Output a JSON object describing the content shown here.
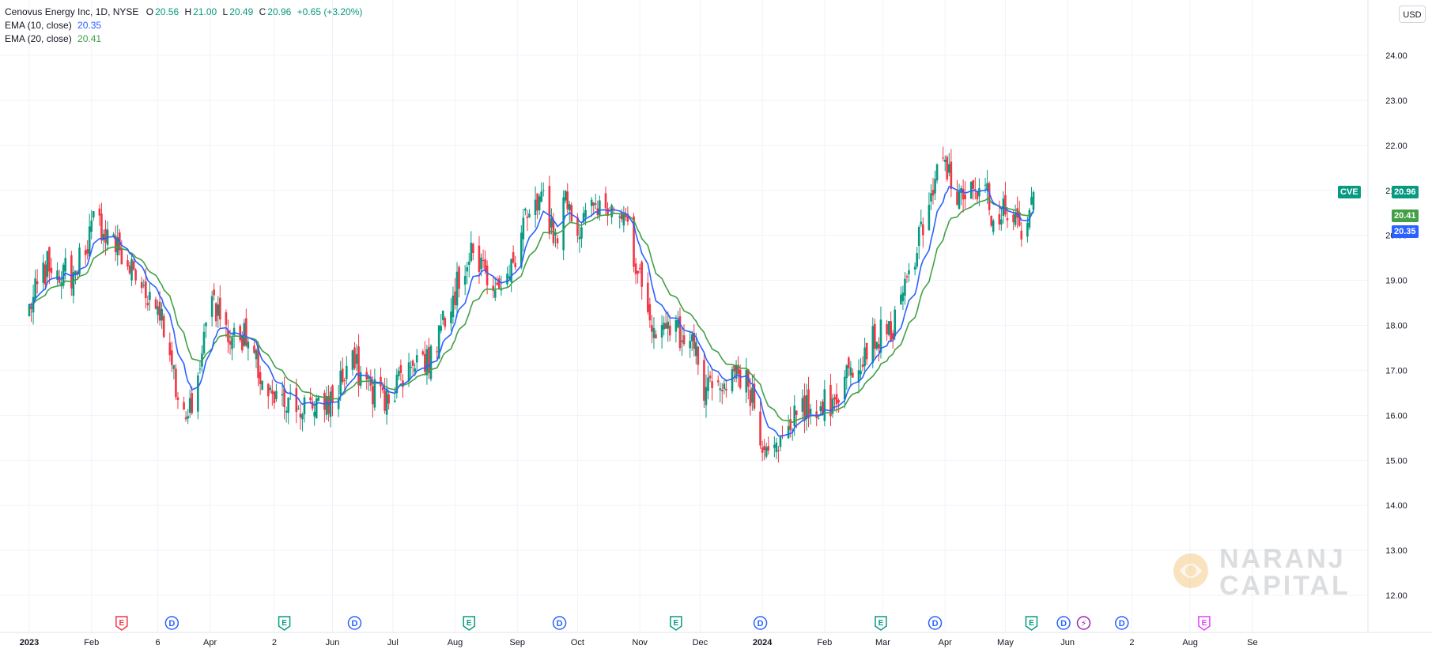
{
  "header": {
    "symbol_line": "Cenovus Energy Inc, 1D, NYSE",
    "ohlc": [
      {
        "label": "O",
        "value": "20.56"
      },
      {
        "label": "H",
        "value": "21.00"
      },
      {
        "label": "L",
        "value": "20.49"
      },
      {
        "label": "C",
        "value": "20.96"
      }
    ],
    "change": "+0.65 (+3.20%)",
    "ema10_label": "EMA (10, close)",
    "ema10_value": "20.35",
    "ema20_label": "EMA (20, close)",
    "ema20_value": "20.41"
  },
  "currency": "USD",
  "price_badges": {
    "ticker": "CVE",
    "last": "20.96",
    "ema20": "20.41",
    "ema10": "20.35"
  },
  "watermark": {
    "line1": "NARANJ",
    "line2": "CAPITAL"
  },
  "colors": {
    "up": "#089981",
    "down": "#f23645",
    "ema10": "#2962ff",
    "ema20": "#43a047",
    "earnings": "#f23645",
    "dividend": "#2962ff",
    "earnings_green": "#089981",
    "split": "#9c27b0",
    "future": "#e040fb"
  },
  "chart_data": {
    "type": "candlestick",
    "title": "Cenovus Energy Inc, 1D, NYSE",
    "ylim": [
      11.6,
      25.0
    ],
    "y_ticks": [
      "12.00",
      "13.00",
      "14.00",
      "15.00",
      "16.00",
      "17.00",
      "18.00",
      "19.00",
      "20.00",
      "21.00",
      "22.00",
      "23.00",
      "24.00"
    ],
    "x_ticks": [
      {
        "label": "2023",
        "bold": true,
        "day": 0
      },
      {
        "label": "Feb",
        "day": 31
      },
      {
        "label": "6",
        "day": 64
      },
      {
        "label": "Apr",
        "day": 90
      },
      {
        "label": "2",
        "day": 122
      },
      {
        "label": "Jun",
        "day": 151
      },
      {
        "label": "Jul",
        "day": 181
      },
      {
        "label": "Aug",
        "day": 212
      },
      {
        "label": "Sep",
        "day": 243
      },
      {
        "label": "Oct",
        "day": 273
      },
      {
        "label": "Nov",
        "day": 304
      },
      {
        "label": "Dec",
        "day": 334
      },
      {
        "label": "2024",
        "bold": true,
        "day": 365
      },
      {
        "label": "Feb",
        "day": 396
      },
      {
        "label": "Mar",
        "day": 425
      },
      {
        "label": "Apr",
        "day": 456
      },
      {
        "label": "May",
        "day": 486
      },
      {
        "label": "Jun",
        "day": 517
      },
      {
        "label": "2",
        "day": 549
      },
      {
        "label": "Aug",
        "day": 578
      },
      {
        "label": "Se",
        "day": 609
      }
    ],
    "anchors": [
      [
        0,
        18.4
      ],
      [
        10,
        19.4
      ],
      [
        22,
        19.1
      ],
      [
        33,
        20.4
      ],
      [
        47,
        19.5
      ],
      [
        56,
        18.9
      ],
      [
        65,
        18.4
      ],
      [
        76,
        15.9
      ],
      [
        84,
        16.7
      ],
      [
        90,
        19.0
      ],
      [
        96,
        17.8
      ],
      [
        108,
        17.7
      ],
      [
        120,
        16.3
      ],
      [
        126,
        16.2
      ],
      [
        139,
        16.3
      ],
      [
        150,
        16.3
      ],
      [
        160,
        17.2
      ],
      [
        170,
        16.6
      ],
      [
        178,
        16.3
      ],
      [
        190,
        17.3
      ],
      [
        200,
        17.2
      ],
      [
        206,
        18.2
      ],
      [
        220,
        19.5
      ],
      [
        230,
        19.1
      ],
      [
        238,
        18.9
      ],
      [
        246,
        20.2
      ],
      [
        256,
        20.7
      ],
      [
        262,
        20.0
      ],
      [
        268,
        20.9
      ],
      [
        273,
        20.1
      ],
      [
        282,
        20.7
      ],
      [
        290,
        20.8
      ],
      [
        300,
        19.8
      ],
      [
        310,
        17.7
      ],
      [
        318,
        18.0
      ],
      [
        326,
        17.7
      ],
      [
        330,
        18.0
      ],
      [
        336,
        16.5
      ],
      [
        346,
        16.5
      ],
      [
        355,
        16.9
      ],
      [
        360,
        16.3
      ],
      [
        368,
        15.0
      ],
      [
        378,
        15.9
      ],
      [
        390,
        16.2
      ],
      [
        400,
        16.3
      ],
      [
        410,
        17.1
      ],
      [
        420,
        17.7
      ],
      [
        430,
        17.9
      ],
      [
        438,
        19.1
      ],
      [
        446,
        20.3
      ],
      [
        452,
        21.3
      ],
      [
        456,
        21.7
      ],
      [
        460,
        20.9
      ],
      [
        466,
        20.7
      ],
      [
        474,
        21.3
      ],
      [
        480,
        20.4
      ],
      [
        486,
        20.7
      ],
      [
        490,
        20.2
      ],
      [
        496,
        19.9
      ],
      [
        500,
        20.96
      ]
    ],
    "last_day": 500,
    "ema10_last": 20.35,
    "ema20_last": 20.41,
    "events": [
      {
        "kind": "E",
        "color": "earnings",
        "day": 46
      },
      {
        "kind": "D",
        "color": "dividend",
        "day": 71
      },
      {
        "kind": "E",
        "color": "earnings_green",
        "day": 127
      },
      {
        "kind": "D",
        "color": "dividend",
        "day": 162
      },
      {
        "kind": "E",
        "color": "earnings_green",
        "day": 219
      },
      {
        "kind": "D",
        "color": "dividend",
        "day": 264
      },
      {
        "kind": "E",
        "color": "earnings_green",
        "day": 322
      },
      {
        "kind": "D",
        "color": "dividend",
        "day": 364
      },
      {
        "kind": "E",
        "color": "earnings_green",
        "day": 424
      },
      {
        "kind": "D",
        "color": "dividend",
        "day": 451
      },
      {
        "kind": "E",
        "color": "earnings_green",
        "day": 499
      },
      {
        "kind": "D",
        "color": "dividend",
        "day": 515
      },
      {
        "kind": "S",
        "color": "split",
        "day": 525
      },
      {
        "kind": "D",
        "color": "dividend",
        "day": 544
      },
      {
        "kind": "E",
        "color": "future",
        "day": 585
      }
    ]
  }
}
